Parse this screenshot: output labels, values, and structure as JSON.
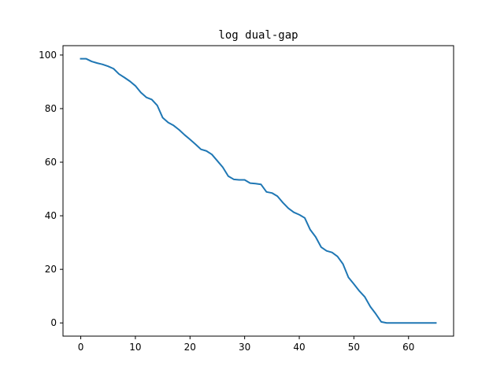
{
  "chart_data": {
    "type": "line",
    "title": "log dual-gap",
    "xlabel": "",
    "ylabel": "",
    "xlim": [
      -3.25,
      68.25
    ],
    "ylim": [
      -4.93,
      103.5
    ],
    "grid": false,
    "xticks": [
      0,
      10,
      20,
      30,
      40,
      50,
      60
    ],
    "yticks": [
      0,
      20,
      40,
      60,
      80,
      100
    ],
    "xtick_labels": [
      "0",
      "10",
      "20",
      "30",
      "40",
      "50",
      "60"
    ],
    "ytick_labels": [
      "0",
      "20",
      "40",
      "60",
      "80",
      "100"
    ],
    "series": [
      {
        "color": "#1f77b4",
        "x": [
          0,
          1,
          2,
          3,
          4,
          5,
          6,
          7,
          8,
          9,
          10,
          11,
          12,
          13,
          14,
          15,
          16,
          17,
          18,
          19,
          20,
          21,
          22,
          23,
          24,
          25,
          26,
          27,
          28,
          29,
          30,
          31,
          32,
          33,
          34,
          35,
          36,
          37,
          38,
          39,
          40,
          41,
          42,
          43,
          44,
          45,
          46,
          47,
          48,
          49,
          50,
          51,
          52,
          53,
          54,
          55,
          56,
          57,
          58,
          59,
          60,
          61,
          62,
          63,
          64,
          65
        ],
        "y": [
          98.6,
          98.6,
          97.6,
          97.0,
          96.5,
          95.8,
          94.9,
          92.9,
          91.6,
          90.2,
          88.5,
          86.0,
          84.2,
          83.4,
          81.2,
          76.6,
          74.8,
          73.7,
          72.1,
          70.2,
          68.5,
          66.7,
          64.8,
          64.2,
          62.9,
          60.5,
          58.1,
          54.8,
          53.6,
          53.4,
          53.4,
          52.2,
          52.0,
          51.7,
          48.9,
          48.5,
          47.3,
          44.9,
          42.8,
          41.3,
          40.4,
          39.2,
          34.8,
          32.1,
          28.3,
          26.9,
          26.3,
          24.8,
          22.0,
          17.0,
          14.5,
          11.9,
          9.7,
          6.1,
          3.4,
          0.4,
          0.0,
          0.0,
          0.0,
          0.0,
          0.0,
          0.0,
          0.0,
          0.0,
          0.0,
          0.0
        ]
      }
    ]
  }
}
